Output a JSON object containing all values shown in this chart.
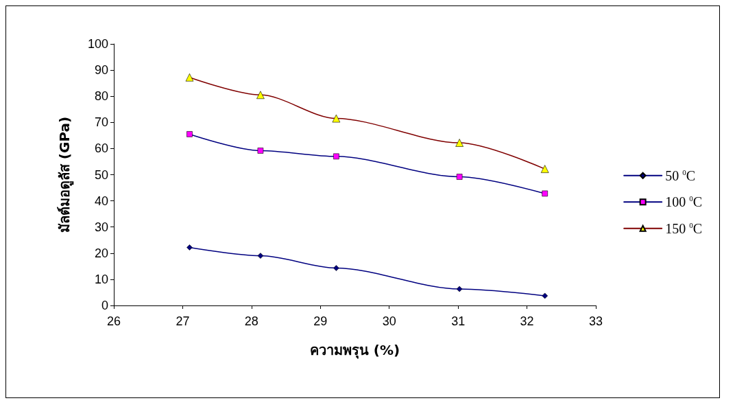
{
  "chart_data": {
    "type": "line",
    "xlabel": "ความพรุน (%)",
    "ylabel": "มัลต์มอดูลัส (GPa)",
    "x": [
      27.1,
      28.13,
      29.23,
      31.02,
      32.26
    ],
    "xlim": [
      26,
      33
    ],
    "xticks": [
      26,
      27,
      28,
      29,
      30,
      31,
      32,
      33
    ],
    "ylim": [
      0,
      100
    ],
    "yticks": [
      0,
      10,
      20,
      30,
      40,
      50,
      60,
      70,
      80,
      90,
      100
    ],
    "grid": false,
    "legend": "right",
    "line_style": "solid",
    "series": [
      {
        "name": "50 $^{0}$C",
        "color": "#000080",
        "marker": "diamond",
        "colors": [
          "#000080",
          "#000080",
          "#000080",
          "#000080",
          "#000080"
        ],
        "values": [
          22.2,
          19,
          14.3,
          6.3,
          3.7
        ]
      },
      {
        "name": "100 $^{0}$C",
        "color": "#000080",
        "marker": "square",
        "colors": [
          "#ff00ff",
          "#ff00ff",
          "#ff00ff",
          "#ff00ff",
          "#ff00ff"
        ],
        "values": [
          65.5,
          59.2,
          57,
          49.2,
          42.8
        ]
      },
      {
        "name": "150 $^{0}$C",
        "color": "#800000",
        "marker": "triangle",
        "colors": [
          "#ffff00",
          "#ffff00",
          "#ffff00",
          "#ffff00",
          "#ffff00"
        ],
        "values": [
          87.2,
          80.5,
          71.5,
          62.2,
          52.2
        ]
      }
    ]
  }
}
